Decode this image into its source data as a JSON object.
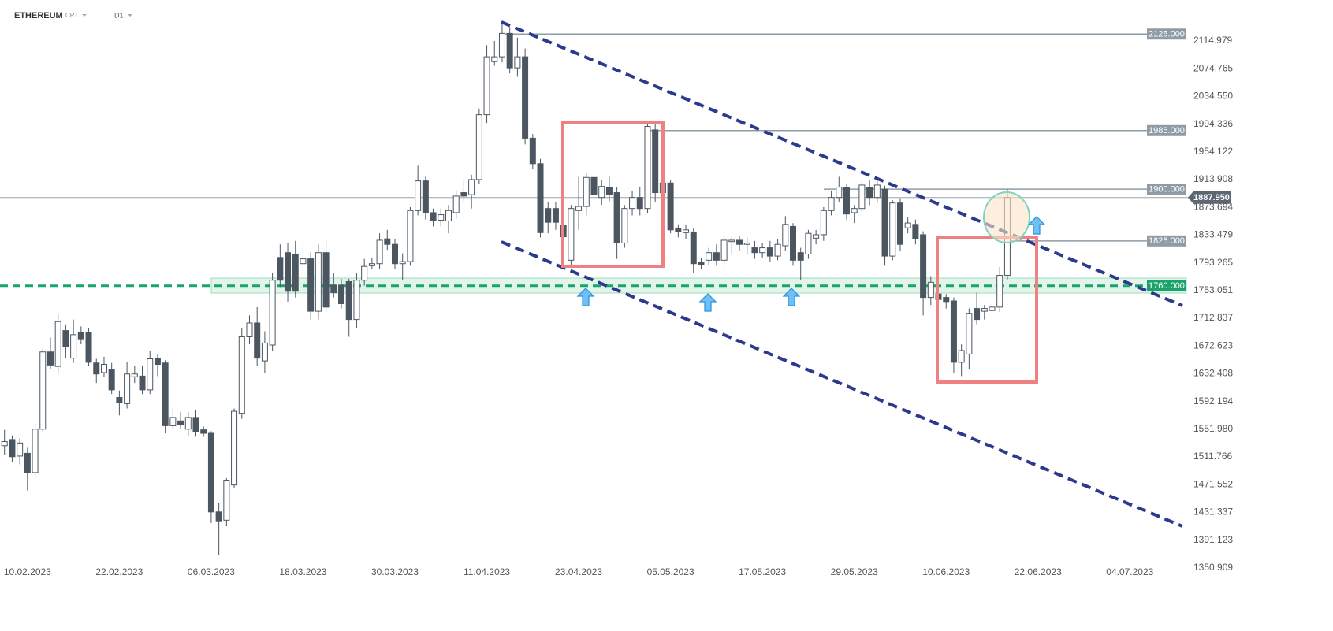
{
  "chart_data": {
    "type": "candlestick",
    "title": "ETHEREUM",
    "instrument_type": "CRT",
    "timeframe": "D1",
    "x": [
      "07.02.2023",
      "08.02.2023",
      "09.02.2023",
      "10.02.2023",
      "11.02.2023",
      "12.02.2023",
      "13.02.2023",
      "14.02.2023",
      "15.02.2023",
      "16.02.2023",
      "17.02.2023",
      "18.02.2023",
      "19.02.2023",
      "20.02.2023",
      "21.02.2023",
      "22.02.2023",
      "23.02.2023",
      "24.02.2023",
      "25.02.2023",
      "26.02.2023",
      "27.02.2023",
      "28.02.2023",
      "01.03.2023",
      "02.03.2023",
      "03.03.2023",
      "04.03.2023",
      "05.03.2023",
      "06.03.2023",
      "07.03.2023",
      "08.03.2023",
      "09.03.2023",
      "10.03.2023",
      "11.03.2023",
      "12.03.2023",
      "13.03.2023",
      "14.03.2023",
      "15.03.2023",
      "16.03.2023",
      "17.03.2023",
      "18.03.2023",
      "19.03.2023",
      "20.03.2023",
      "21.03.2023",
      "22.03.2023",
      "23.03.2023",
      "24.03.2023",
      "25.03.2023",
      "26.03.2023",
      "27.03.2023",
      "28.03.2023",
      "29.03.2023",
      "30.03.2023",
      "31.03.2023",
      "01.04.2023",
      "02.04.2023",
      "03.04.2023",
      "04.04.2023",
      "05.04.2023",
      "06.04.2023",
      "07.04.2023",
      "08.04.2023",
      "09.04.2023",
      "10.04.2023",
      "11.04.2023",
      "12.04.2023",
      "13.04.2023",
      "14.04.2023",
      "15.04.2023",
      "16.04.2023",
      "17.04.2023",
      "18.04.2023",
      "19.04.2023",
      "20.04.2023",
      "21.04.2023",
      "22.04.2023",
      "23.04.2023",
      "24.04.2023",
      "25.04.2023",
      "26.04.2023",
      "27.04.2023",
      "28.04.2023",
      "29.04.2023",
      "30.04.2023",
      "01.05.2023",
      "02.05.2023",
      "03.05.2023",
      "04.05.2023",
      "05.05.2023",
      "06.05.2023",
      "07.05.2023",
      "08.05.2023",
      "09.05.2023",
      "10.05.2023",
      "11.05.2023",
      "12.05.2023",
      "13.05.2023",
      "14.05.2023",
      "15.05.2023",
      "16.05.2023",
      "17.05.2023",
      "18.05.2023",
      "19.05.2023",
      "20.05.2023",
      "21.05.2023",
      "22.05.2023",
      "23.05.2023",
      "24.05.2023",
      "25.05.2023",
      "26.05.2023",
      "27.05.2023",
      "28.05.2023",
      "29.05.2023",
      "30.05.2023",
      "31.05.2023",
      "01.06.2023",
      "02.06.2023",
      "03.06.2023",
      "04.06.2023",
      "05.06.2023",
      "06.06.2023",
      "07.06.2023",
      "08.06.2023",
      "09.06.2023",
      "10.06.2023",
      "11.06.2023",
      "12.06.2023",
      "13.06.2023",
      "14.06.2023",
      "15.06.2023",
      "16.06.2023",
      "17.06.2023",
      "18.06.2023"
    ],
    "open": [
      1528,
      1537,
      1513,
      1517,
      1489,
      1552,
      1664,
      1643,
      1695,
      1655,
      1692,
      1692,
      1648,
      1634,
      1638,
      1598,
      1589,
      1628,
      1629,
      1609,
      1654,
      1648,
      1557,
      1564,
      1552,
      1569,
      1551,
      1546,
      1432,
      1420,
      1471,
      1575,
      1686,
      1706,
      1651,
      1674,
      1801,
      1808,
      1806,
      1792,
      1799,
      1723,
      1808,
      1761,
      1761,
      1766,
      1711,
      1768,
      1789,
      1792,
      1828,
      1820,
      1792,
      1795,
      1869,
      1912,
      1866,
      1855,
      1854,
      1866,
      1895,
      1892,
      1914,
      2008,
      2085,
      2092,
      2126,
      2076,
      2092,
      1974,
      1937,
      1872,
      1872,
      1848,
      1797,
      1869,
      1875,
      1917,
      1888,
      1903,
      1895,
      1822,
      1872,
      1888,
      1872,
      1986,
      1895,
      1909,
      1843,
      1837,
      1838,
      1794,
      1797,
      1808,
      1797,
      1824,
      1826,
      1820,
      1815,
      1808,
      1815,
      1803,
      1818,
      1846,
      1808,
      1806,
      1829,
      1834,
      1869,
      1888,
      1903,
      1866,
      1872,
      1903,
      1888,
      1900,
      1803,
      1880,
      1844,
      1849,
      1834,
      1743,
      1748,
      1743,
      1738,
      1649,
      1661,
      1727,
      1723,
      1724,
      1729,
      1775
    ],
    "high": [
      1551,
      1543,
      1539,
      1525,
      1561,
      1668,
      1685,
      1719,
      1704,
      1711,
      1701,
      1698,
      1654,
      1657,
      1648,
      1608,
      1649,
      1644,
      1644,
      1665,
      1660,
      1652,
      1582,
      1577,
      1577,
      1580,
      1556,
      1549,
      1445,
      1481,
      1582,
      1698,
      1717,
      1729,
      1694,
      1779,
      1820,
      1822,
      1825,
      1825,
      1809,
      1820,
      1825,
      1779,
      1770,
      1770,
      1779,
      1799,
      1801,
      1836,
      1841,
      1828,
      1807,
      1874,
      1934,
      1918,
      1872,
      1872,
      1877,
      1898,
      1913,
      1921,
      2017,
      2109,
      2115,
      2141,
      2135,
      2120,
      2104,
      1980,
      1944,
      1882,
      1882,
      1859,
      1877,
      1918,
      1924,
      1929,
      1913,
      1918,
      1903,
      1877,
      1898,
      1903,
      1997,
      1994,
      1918,
      1913,
      1849,
      1849,
      1843,
      1801,
      1815,
      1820,
      1832,
      1830,
      1832,
      1830,
      1825,
      1822,
      1825,
      1828,
      1861,
      1851,
      1815,
      1841,
      1841,
      1874,
      1898,
      1918,
      1908,
      1877,
      1911,
      1913,
      1913,
      1905,
      1884,
      1887,
      1859,
      1856,
      1839,
      1774,
      1758,
      1748,
      1743,
      1675,
      1727,
      1750,
      1732,
      1748,
      1787,
      1900
    ],
    "low": [
      1515,
      1504,
      1501,
      1463,
      1484,
      1549,
      1639,
      1634,
      1655,
      1648,
      1675,
      1644,
      1619,
      1628,
      1603,
      1572,
      1582,
      1619,
      1603,
      1603,
      1629,
      1546,
      1553,
      1553,
      1541,
      1541,
      1541,
      1416,
      1369,
      1411,
      1466,
      1567,
      1675,
      1644,
      1634,
      1665,
      1758,
      1737,
      1743,
      1779,
      1711,
      1711,
      1722,
      1743,
      1727,
      1686,
      1698,
      1760,
      1784,
      1784,
      1812,
      1784,
      1768,
      1789,
      1862,
      1856,
      1846,
      1846,
      1836,
      1857,
      1882,
      1872,
      1908,
      1996,
      2079,
      2084,
      2068,
      2063,
      1965,
      1929,
      1830,
      1836,
      1841,
      1820,
      1789,
      1841,
      1862,
      1882,
      1877,
      1882,
      1799,
      1815,
      1862,
      1862,
      1865,
      1882,
      1887,
      1836,
      1830,
      1828,
      1779,
      1784,
      1789,
      1789,
      1789,
      1805,
      1810,
      1805,
      1799,
      1801,
      1794,
      1797,
      1810,
      1789,
      1768,
      1799,
      1820,
      1825,
      1862,
      1882,
      1856,
      1851,
      1867,
      1877,
      1882,
      1789,
      1797,
      1810,
      1836,
      1820,
      1717,
      1732,
      1732,
      1727,
      1634,
      1629,
      1639,
      1704,
      1711,
      1701,
      1722,
      1769
    ],
    "close": [
      1534,
      1512,
      1532,
      1489,
      1552,
      1664,
      1645,
      1708,
      1672,
      1689,
      1683,
      1649,
      1632,
      1646,
      1609,
      1591,
      1632,
      1632,
      1609,
      1654,
      1646,
      1557,
      1569,
      1559,
      1569,
      1548,
      1546,
      1432,
      1419,
      1478,
      1578,
      1686,
      1706,
      1655,
      1677,
      1768,
      1768,
      1752,
      1752,
      1799,
      1723,
      1808,
      1729,
      1750,
      1734,
      1711,
      1768,
      1788,
      1792,
      1826,
      1820,
      1792,
      1795,
      1869,
      1912,
      1866,
      1854,
      1863,
      1869,
      1890,
      1890,
      1914,
      2008,
      2092,
      2092,
      2126,
      2076,
      2092,
      1974,
      1937,
      1837,
      1852,
      1852,
      1831,
      1872,
      1875,
      1917,
      1892,
      1904,
      1892,
      1822,
      1872,
      1888,
      1872,
      1991,
      1895,
      1909,
      1841,
      1838,
      1841,
      1792,
      1790,
      1808,
      1797,
      1826,
      1826,
      1820,
      1822,
      1808,
      1815,
      1803,
      1820,
      1849,
      1797,
      1797,
      1836,
      1834,
      1869,
      1888,
      1903,
      1864,
      1872,
      1906,
      1888,
      1906,
      1803,
      1880,
      1820,
      1851,
      1828,
      1743,
      1765,
      1740,
      1737,
      1649,
      1666,
      1720,
      1711,
      1727,
      1729,
      1775,
      1887.95
    ],
    "up_color": "#ffffff",
    "down_color": "#4b5661",
    "edge_color": "#4b5661",
    "xlim": [
      "06.02.2023",
      "12.07.2023"
    ],
    "xticks": [
      "10.02.2023",
      "22.02.2023",
      "06.03.2023",
      "18.03.2023",
      "30.03.2023",
      "11.04.2023",
      "23.04.2023",
      "05.05.2023",
      "17.05.2023",
      "29.05.2023",
      "10.06.2023",
      "22.06.2023",
      "04.07.2023"
    ],
    "ylim": [
      1292.4,
      2174.4
    ],
    "yticks": [
      2114.979,
      2074.765,
      {
        "value": 2034.55,
        "label": "2034.550"
      },
      1994.336,
      1954.122,
      1913.908,
      1873.694,
      1833.479,
      1793.265,
      1753.051,
      1712.837,
      1672.623,
      1632.408,
      1592.194,
      {
        "value": 1551.98,
        "label": "1551.980"
      },
      1511.766,
      1471.552,
      1431.337,
      1391.123,
      1350.909
    ],
    "levels": [
      {
        "value": 2125,
        "label": "2125.000",
        "color": "#8f9ca5"
      },
      {
        "value": 1985,
        "label": "1985.000",
        "color": "#8f9ca5"
      },
      {
        "value": 1900,
        "label": "1900.000",
        "color": "#8f9ca5"
      },
      {
        "value": 1825,
        "label": "1825.000",
        "color": "#8f9ca5"
      },
      {
        "value": 1760,
        "label": "1760.000",
        "color": "#1aa36a",
        "dashed": true
      }
    ],
    "last_price": {
      "value": 1887.95,
      "label": "1887.950",
      "color": "#5c6771"
    }
  }
}
